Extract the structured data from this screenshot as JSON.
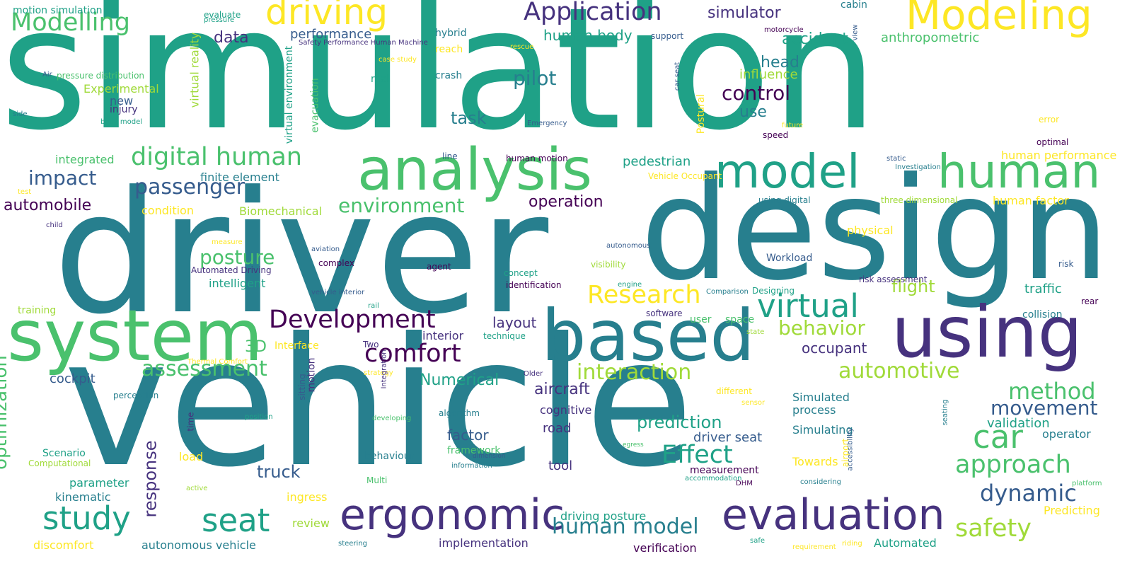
{
  "colors": {
    "background": "#ffffff",
    "palette": {
      "c1": "#440154",
      "c2": "#46327e",
      "c3": "#365c8d",
      "c4": "#277f8e",
      "c5": "#1fa187",
      "c6": "#4ac16d",
      "c7": "#a0da39",
      "c8": "#fde725"
    }
  },
  "words": [
    {
      "text": "simulation",
      "c": "c5"
    },
    {
      "text": "driver",
      "c": "c4"
    },
    {
      "text": "vehicle",
      "c": "c4"
    },
    {
      "text": "design",
      "c": "c4"
    },
    {
      "text": "system",
      "c": "c6"
    },
    {
      "text": "based",
      "c": "c4"
    },
    {
      "text": "using",
      "c": "c2"
    },
    {
      "text": "analysis",
      "c": "c6"
    },
    {
      "text": "model",
      "c": "c5"
    },
    {
      "text": "human",
      "c": "c6"
    },
    {
      "text": "ergonomic",
      "c": "c2"
    },
    {
      "text": "evaluation",
      "c": "c2"
    },
    {
      "text": "Modeling",
      "c": "c8"
    },
    {
      "text": "driving",
      "c": "c8"
    },
    {
      "text": "Application",
      "c": "c2"
    },
    {
      "text": "Modelling",
      "c": "c6"
    },
    {
      "text": "digital human",
      "c": "c6"
    },
    {
      "text": "virtual",
      "c": "c5"
    },
    {
      "text": "study",
      "c": "c5"
    },
    {
      "text": "seat",
      "c": "c5"
    },
    {
      "text": "car",
      "c": "c6"
    },
    {
      "text": "comfort",
      "c": "c1"
    },
    {
      "text": "Development",
      "c": "c1"
    },
    {
      "text": "interaction",
      "c": "c7"
    },
    {
      "text": "automotive",
      "c": "c7"
    },
    {
      "text": "human model",
      "c": "c4"
    },
    {
      "text": "approach",
      "c": "c6"
    },
    {
      "text": "safety",
      "c": "c7"
    },
    {
      "text": "method",
      "c": "c6"
    },
    {
      "text": "Effect",
      "c": "c5"
    },
    {
      "text": "Research",
      "c": "c8"
    },
    {
      "text": "assessment",
      "c": "c6"
    },
    {
      "text": "passenger",
      "c": "c3"
    },
    {
      "text": "environment",
      "c": "c6"
    },
    {
      "text": "impact",
      "c": "c3"
    },
    {
      "text": "control",
      "c": "c1"
    },
    {
      "text": "pilot",
      "c": "c4"
    },
    {
      "text": "movement",
      "c": "c3"
    },
    {
      "text": "dynamic",
      "c": "c3"
    },
    {
      "text": "behavior",
      "c": "c7"
    },
    {
      "text": "posture",
      "c": "c6"
    },
    {
      "text": "prediction",
      "c": "c5"
    },
    {
      "text": "simulator",
      "c": "c2"
    },
    {
      "text": "data",
      "c": "c2"
    },
    {
      "text": "human body",
      "c": "c5"
    },
    {
      "text": "accident",
      "c": "c5"
    },
    {
      "text": "head",
      "c": "c4"
    },
    {
      "text": "task",
      "c": "c4"
    },
    {
      "text": "use",
      "c": "c4"
    },
    {
      "text": "automobile",
      "c": "c1"
    },
    {
      "text": "operation",
      "c": "c1"
    },
    {
      "text": "flight",
      "c": "c7"
    },
    {
      "text": "layout",
      "c": "c2"
    },
    {
      "text": "occupant",
      "c": "c2"
    },
    {
      "text": "aircraft",
      "c": "c2"
    },
    {
      "text": "truck",
      "c": "c3"
    },
    {
      "text": "Numerical",
      "c": "c5"
    },
    {
      "text": "3D",
      "c": "c6"
    },
    {
      "text": "optimization",
      "c": "c6"
    },
    {
      "text": "response",
      "c": "c2"
    },
    {
      "text": "influence",
      "c": "c7"
    },
    {
      "text": "anthropometric",
      "c": "c6"
    },
    {
      "text": "performance",
      "c": "c3"
    },
    {
      "text": "pedestrian",
      "c": "c5"
    },
    {
      "text": "traffic",
      "c": "c5"
    },
    {
      "text": "factor",
      "c": "c3"
    },
    {
      "text": "road",
      "c": "c2"
    },
    {
      "text": "tool",
      "c": "c2"
    },
    {
      "text": "driver seat",
      "c": "c3"
    },
    {
      "text": "validation",
      "c": "c5"
    },
    {
      "text": "cockpit",
      "c": "c3"
    },
    {
      "text": "interior",
      "c": "c2"
    },
    {
      "text": "Experimental",
      "c": "c7"
    },
    {
      "text": "intelligent",
      "c": "c5"
    },
    {
      "text": "integrated",
      "c": "c6"
    },
    {
      "text": "new",
      "c": "c3"
    },
    {
      "text": "injury",
      "c": "c2"
    },
    {
      "text": "crash",
      "c": "c4"
    },
    {
      "text": "hybrid",
      "c": "c4"
    },
    {
      "text": "reach",
      "c": "c8"
    },
    {
      "text": "real",
      "c": "c5"
    },
    {
      "text": "Biomechanical",
      "c": "c7"
    },
    {
      "text": "condition",
      "c": "c8"
    },
    {
      "text": "finite element",
      "c": "c4"
    },
    {
      "text": "autonomous vehicle",
      "c": "c4"
    },
    {
      "text": "implementation",
      "c": "c2"
    },
    {
      "text": "verification",
      "c": "c1"
    },
    {
      "text": "Automated",
      "c": "c5"
    },
    {
      "text": "discomfort",
      "c": "c8"
    },
    {
      "text": "kinematic",
      "c": "c4"
    },
    {
      "text": "parameter",
      "c": "c5"
    },
    {
      "text": "Scenario",
      "c": "c5"
    },
    {
      "text": "Computational",
      "c": "c7"
    },
    {
      "text": "load",
      "c": "c8"
    },
    {
      "text": "ingress",
      "c": "c8"
    },
    {
      "text": "review",
      "c": "c7"
    },
    {
      "text": "driving posture",
      "c": "c5"
    },
    {
      "text": "cognitive",
      "c": "c2"
    },
    {
      "text": "process",
      "c": "c4"
    },
    {
      "text": "Simulated",
      "c": "c4"
    },
    {
      "text": "Simulating",
      "c": "c4"
    },
    {
      "text": "operator",
      "c": "c4"
    },
    {
      "text": "Predicting",
      "c": "c8"
    },
    {
      "text": "Towards",
      "c": "c8"
    },
    {
      "text": "measurement",
      "c": "c1"
    },
    {
      "text": "human factor",
      "c": "c8"
    },
    {
      "text": "human performance",
      "c": "c8"
    },
    {
      "text": "physical",
      "c": "c8"
    },
    {
      "text": "user",
      "c": "c6"
    },
    {
      "text": "space",
      "c": "c6"
    },
    {
      "text": "collision",
      "c": "c4"
    },
    {
      "text": "framework",
      "c": "c6"
    },
    {
      "text": "behaviour",
      "c": "c4"
    },
    {
      "text": "algorithm",
      "c": "c4"
    },
    {
      "text": "Multi",
      "c": "c6"
    },
    {
      "text": "motion",
      "c": "c2"
    },
    {
      "text": "human motion",
      "c": "c1"
    },
    {
      "text": "line",
      "c": "c3"
    },
    {
      "text": "motion simulation",
      "c": "c5"
    },
    {
      "text": "evaluate",
      "c": "c5"
    },
    {
      "text": "pressure",
      "c": "c5"
    },
    {
      "text": "Safety Performance Human Machine",
      "c": "c2"
    },
    {
      "text": "pressure distribution",
      "c": "c6"
    },
    {
      "text": "Air",
      "c": "c3"
    },
    {
      "text": "side",
      "c": "c4"
    },
    {
      "text": "body model",
      "c": "c5"
    },
    {
      "text": "training",
      "c": "c7"
    },
    {
      "text": "test",
      "c": "c8"
    },
    {
      "text": "child",
      "c": "c2"
    },
    {
      "text": "measure",
      "c": "c8"
    },
    {
      "text": "Automated Driving",
      "c": "c2"
    },
    {
      "text": "aviation",
      "c": "c3"
    },
    {
      "text": "complex",
      "c": "c1"
    },
    {
      "text": "agent",
      "c": "c1"
    },
    {
      "text": "vehicle interior",
      "c": "c3"
    },
    {
      "text": "rail",
      "c": "c5"
    },
    {
      "text": "Interface",
      "c": "c8"
    },
    {
      "text": "Thermal Comfort",
      "c": "c8"
    },
    {
      "text": "Two",
      "c": "c2"
    },
    {
      "text": "strategy",
      "c": "c8"
    },
    {
      "text": "technique",
      "c": "c5"
    },
    {
      "text": "Older",
      "c": "c2"
    },
    {
      "text": "perception",
      "c": "c4"
    },
    {
      "text": "position",
      "c": "c5"
    },
    {
      "text": "developing",
      "c": "c6"
    },
    {
      "text": "information",
      "c": "c4"
    },
    {
      "text": "dimension",
      "c": "c3"
    },
    {
      "text": "active",
      "c": "c7"
    },
    {
      "text": "steering",
      "c": "c4"
    },
    {
      "text": "safe",
      "c": "c5"
    },
    {
      "text": "requirement",
      "c": "c8"
    },
    {
      "text": "riding",
      "c": "c8"
    },
    {
      "text": "accommodation",
      "c": "c5"
    },
    {
      "text": "DHM",
      "c": "c1"
    },
    {
      "text": "considering",
      "c": "c4"
    },
    {
      "text": "platform",
      "c": "c6"
    },
    {
      "text": "egress",
      "c": "c6"
    },
    {
      "text": "airport",
      "c": "c8"
    },
    {
      "text": "different",
      "c": "c8"
    },
    {
      "text": "sensor",
      "c": "c8"
    },
    {
      "text": "state",
      "c": "c7"
    },
    {
      "text": "software",
      "c": "c2"
    },
    {
      "text": "Designing",
      "c": "c5"
    },
    {
      "text": "Comparison",
      "c": "c4"
    },
    {
      "text": "risk assessment",
      "c": "c2"
    },
    {
      "text": "risk",
      "c": "c3"
    },
    {
      "text": "engine",
      "c": "c5"
    },
    {
      "text": "identification",
      "c": "c1"
    },
    {
      "text": "concept",
      "c": "c5"
    },
    {
      "text": "visibility",
      "c": "c7"
    },
    {
      "text": "autonomous",
      "c": "c3"
    },
    {
      "text": "Workload",
      "c": "c3"
    },
    {
      "text": "using digital",
      "c": "c4"
    },
    {
      "text": "three dimensional",
      "c": "c7"
    },
    {
      "text": "Vehicle Occupant",
      "c": "c8"
    },
    {
      "text": "static",
      "c": "c3"
    },
    {
      "text": "Investigation",
      "c": "c4"
    },
    {
      "text": "error",
      "c": "c8"
    },
    {
      "text": "optimal",
      "c": "c1"
    },
    {
      "text": "rear",
      "c": "c1"
    },
    {
      "text": "speed",
      "c": "c1"
    },
    {
      "text": "future",
      "c": "c8"
    },
    {
      "text": "Emergency",
      "c": "c3"
    },
    {
      "text": "rescue",
      "c": "c8"
    },
    {
      "text": "support",
      "c": "c3"
    },
    {
      "text": "motorcycle",
      "c": "c1"
    },
    {
      "text": "cabin",
      "c": "c4"
    },
    {
      "text": "case study",
      "c": "c8"
    },
    {
      "text": "Postural",
      "c": "c8"
    },
    {
      "text": "car seat",
      "c": "c3"
    },
    {
      "text": "view",
      "c": "c3"
    },
    {
      "text": "virtual reality",
      "c": "c7"
    },
    {
      "text": "virtual environment",
      "c": "c5"
    },
    {
      "text": "evacuation",
      "c": "c6"
    },
    {
      "text": "sitting",
      "c": "c3"
    },
    {
      "text": "Integration",
      "c": "c2"
    },
    {
      "text": "time",
      "c": "c2"
    },
    {
      "text": "seating",
      "c": "c4"
    },
    {
      "text": "accessibility",
      "c": "c3"
    }
  ]
}
